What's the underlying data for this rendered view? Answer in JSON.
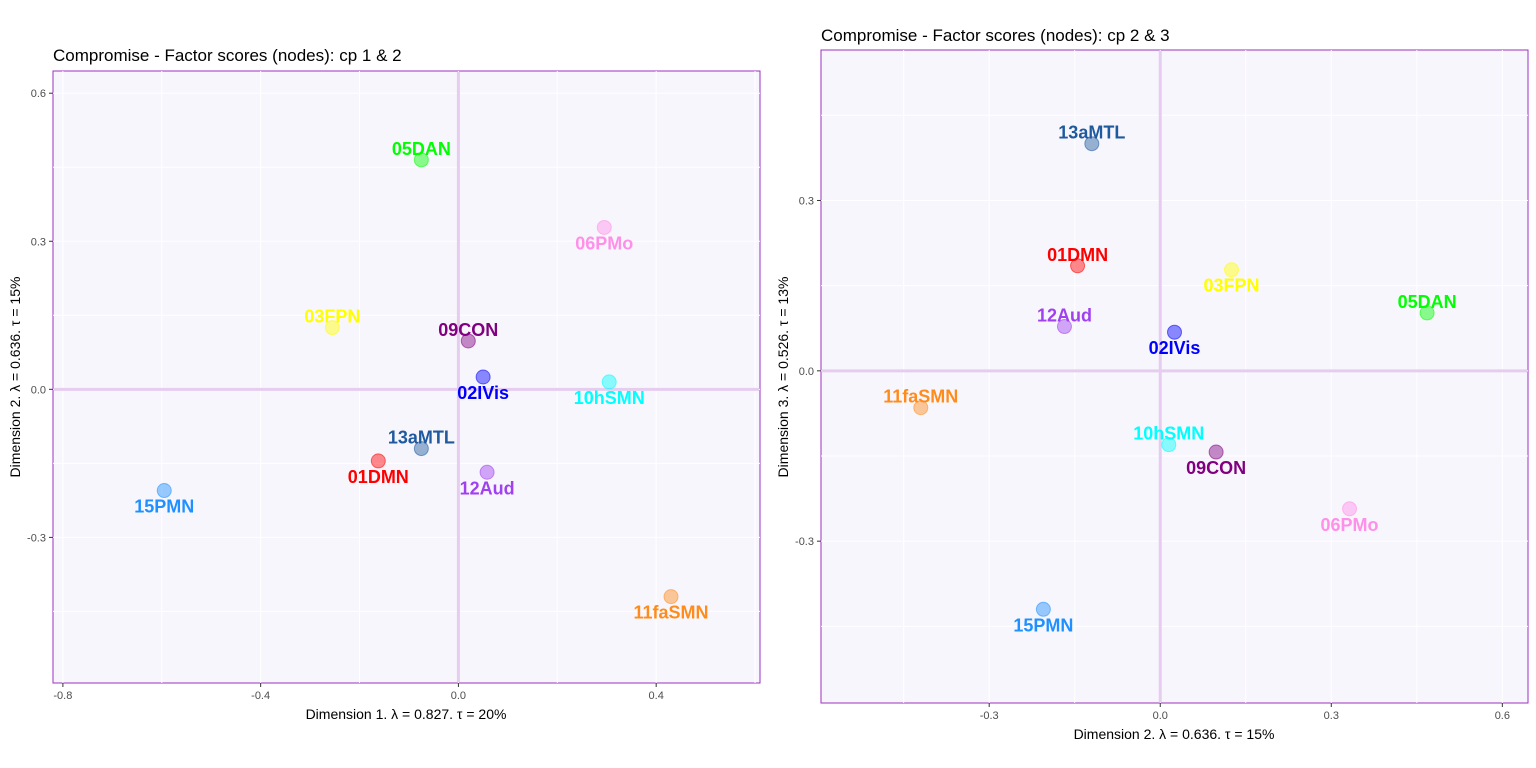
{
  "chart_data": [
    {
      "type": "scatter",
      "title": "Compromise - Factor scores (nodes): cp 1 & 2",
      "xlabel": "Dimension 1.   λ = 0.827.  τ = 20%",
      "ylabel": "Dimension 2.   λ = 0.636.  τ = 15%",
      "xlim": [
        -0.82,
        0.61
      ],
      "ylim": [
        -0.595,
        0.645
      ],
      "xticks": [
        -0.8,
        -0.4,
        0.0,
        0.4
      ],
      "xtick_labels": [
        "-0.8",
        "-0.4",
        "0.0",
        "0.4"
      ],
      "yticks": [
        -0.3,
        0.0,
        0.3,
        0.6
      ],
      "ytick_labels": [
        "-0.3",
        "0.0",
        "0.3",
        "0.6"
      ],
      "grid": true,
      "points": [
        {
          "label": "05DAN",
          "x": -0.075,
          "y": 0.465,
          "color": "#00ff00",
          "label_pos": "above"
        },
        {
          "label": "06PMo",
          "x": 0.295,
          "y": 0.328,
          "color": "#ff8fe8",
          "label_pos": "below"
        },
        {
          "label": "03FPN",
          "x": -0.255,
          "y": 0.125,
          "color": "#ffff00",
          "label_pos": "above"
        },
        {
          "label": "09CON",
          "x": 0.02,
          "y": 0.098,
          "color": "#800080",
          "label_pos": "above"
        },
        {
          "label": "02IVis",
          "x": 0.05,
          "y": 0.025,
          "color": "#0000ff",
          "label_pos": "below"
        },
        {
          "label": "10hSMN",
          "x": 0.305,
          "y": 0.015,
          "color": "#00ffff",
          "label_pos": "below"
        },
        {
          "label": "13aMTL",
          "x": -0.075,
          "y": -0.12,
          "color": "#1f5a9e",
          "label_pos": "above"
        },
        {
          "label": "01DMN",
          "x": -0.162,
          "y": -0.145,
          "color": "#ff0000",
          "label_pos": "below"
        },
        {
          "label": "12Aud",
          "x": 0.058,
          "y": -0.168,
          "color": "#a040ee",
          "label_pos": "below"
        },
        {
          "label": "15PMN",
          "x": -0.595,
          "y": -0.205,
          "color": "#1e90ff",
          "label_pos": "below"
        },
        {
          "label": "11faSMN",
          "x": 0.43,
          "y": -0.42,
          "color": "#ff8c1a",
          "label_pos": "below"
        }
      ]
    },
    {
      "type": "scatter",
      "title": "Compromise - Factor scores (nodes): cp 2 & 3",
      "xlabel": "Dimension 2.   λ = 0.636.  τ = 15%",
      "ylabel": "Dimension 3.   λ = 0.526.  τ = 13%",
      "xlim": [
        -0.595,
        0.645
      ],
      "ylim": [
        -0.585,
        0.565
      ],
      "xticks": [
        -0.3,
        0.0,
        0.3,
        0.6
      ],
      "xtick_labels": [
        "-0.3",
        "0.0",
        "0.3",
        "0.6"
      ],
      "yticks": [
        -0.3,
        0.0,
        0.3
      ],
      "ytick_labels": [
        "-0.3",
        "0.0",
        "0.3"
      ],
      "grid": true,
      "points": [
        {
          "label": "13aMTL",
          "x": -0.12,
          "y": 0.4,
          "color": "#1f5a9e",
          "label_pos": "above"
        },
        {
          "label": "01DMN",
          "x": -0.145,
          "y": 0.185,
          "color": "#ff0000",
          "label_pos": "above"
        },
        {
          "label": "03FPN",
          "x": 0.125,
          "y": 0.178,
          "color": "#ffff00",
          "label_pos": "below"
        },
        {
          "label": "05DAN",
          "x": 0.468,
          "y": 0.102,
          "color": "#00ff00",
          "label_pos": "above"
        },
        {
          "label": "12Aud",
          "x": -0.168,
          "y": 0.078,
          "color": "#a040ee",
          "label_pos": "above"
        },
        {
          "label": "02IVis",
          "x": 0.025,
          "y": 0.068,
          "color": "#0000ff",
          "label_pos": "below"
        },
        {
          "label": "11faSMN",
          "x": -0.42,
          "y": -0.065,
          "color": "#ff8c1a",
          "label_pos": "above"
        },
        {
          "label": "10hSMN",
          "x": 0.015,
          "y": -0.13,
          "color": "#00ffff",
          "label_pos": "above"
        },
        {
          "label": "09CON",
          "x": 0.098,
          "y": -0.143,
          "color": "#800080",
          "label_pos": "below"
        },
        {
          "label": "06PMo",
          "x": 0.332,
          "y": -0.243,
          "color": "#ff8fe8",
          "label_pos": "below"
        },
        {
          "label": "15PMN",
          "x": -0.205,
          "y": -0.42,
          "color": "#1e90ff",
          "label_pos": "below"
        }
      ]
    }
  ]
}
